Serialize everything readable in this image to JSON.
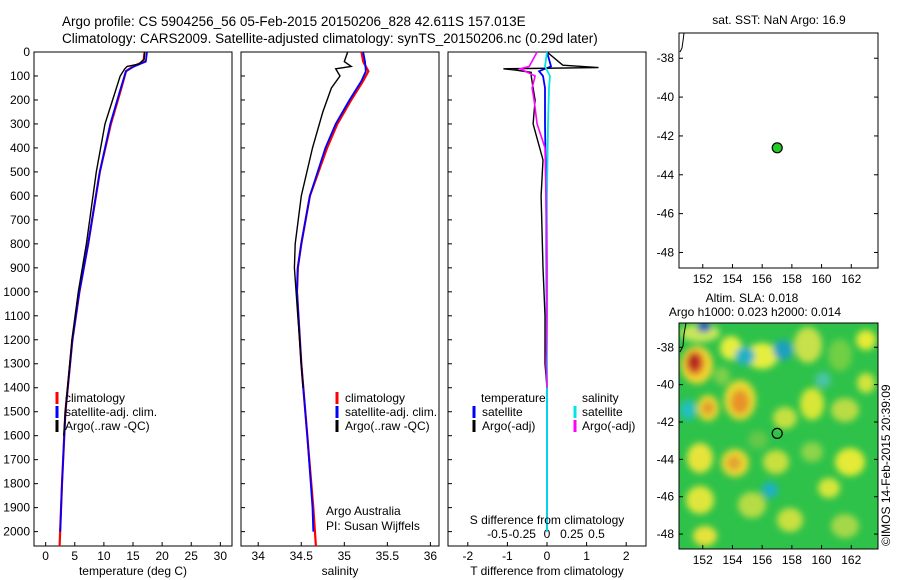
{
  "header": {
    "line1": "Argo profile: CS 5904256_56 05-Feb-2015 20150206_828 42.611S 157.013E",
    "line2": "Climatology: CARS2009. Satellite-adjusted climatology: synTS_20150206.nc (0.29d later)"
  },
  "colors": {
    "climatology": "#ff0000",
    "satellite": "#0000ff",
    "argo": "#000000",
    "salinity_satellite": "#00e5e5",
    "salinity_argo": "#ff00ff",
    "marker_sst": "#22cc22"
  },
  "chart_data": [
    {
      "type": "line",
      "xlabel": "temperature (deg C)",
      "xticks": [
        "0",
        "5",
        "10",
        "15",
        "20",
        "25",
        "30"
      ],
      "xlim": [
        -2,
        32
      ],
      "yticks": [
        "0",
        "100",
        "200",
        "300",
        "400",
        "500",
        "600",
        "700",
        "800",
        "900",
        "1000",
        "1100",
        "1200",
        "1300",
        "1400",
        "1500",
        "1600",
        "1700",
        "1800",
        "1900",
        "2000"
      ],
      "ylim": [
        2060,
        0
      ],
      "legend": [
        "climatology",
        "satellite-adj. clim.",
        "Argo(..raw -QC)"
      ],
      "series": [
        {
          "name": "climatology",
          "depth": [
            0,
            40,
            60,
            80,
            150,
            300,
            500,
            800,
            1000,
            1200,
            1500,
            1800,
            2060
          ],
          "values": [
            17,
            16.8,
            15,
            13.8,
            13,
            11.2,
            9.3,
            7.3,
            5.8,
            4.6,
            3.4,
            2.8,
            2.4
          ]
        },
        {
          "name": "satellite-adj. clim.",
          "depth": [
            0,
            40,
            60,
            80,
            150,
            300,
            500,
            800,
            1000,
            1200,
            1500,
            1800,
            2000
          ],
          "values": [
            17.4,
            17.2,
            15.2,
            13.8,
            12.9,
            11.1,
            9.3,
            7.3,
            5.8,
            4.6,
            3.4,
            2.8,
            2.5
          ]
        },
        {
          "name": "Argo(..raw -QC)",
          "depth": [
            0,
            30,
            50,
            60,
            70,
            100,
            200,
            300,
            500,
            800,
            1000,
            1200,
            1500,
            1600
          ],
          "values": [
            17,
            16.9,
            16,
            14,
            13.6,
            12.8,
            11.5,
            10.2,
            8.7,
            7,
            5.6,
            4.5,
            3.4,
            3.1
          ]
        }
      ]
    },
    {
      "type": "line",
      "xlabel": "salinity",
      "xticks": [
        "34",
        "34.5",
        "35",
        "35.5",
        "36"
      ],
      "xlim": [
        33.8,
        36.1
      ],
      "ylim": [
        2060,
        0
      ],
      "legend": [
        "climatology",
        "satellite-adj. clim.",
        "Argo(..raw -QC)"
      ],
      "annotation": [
        "Argo Australia",
        "PI: Susan Wijffels"
      ],
      "series": [
        {
          "name": "climatology",
          "depth": [
            0,
            40,
            80,
            120,
            200,
            300,
            400,
            600,
            800,
            900,
            1000,
            1300,
            1600,
            1900,
            2060
          ],
          "values": [
            35.2,
            35.22,
            35.28,
            35.22,
            35.08,
            34.92,
            34.8,
            34.6,
            34.5,
            34.46,
            34.45,
            34.5,
            34.57,
            34.64,
            34.67
          ]
        },
        {
          "name": "satellite-adj. clim.",
          "depth": [
            0,
            40,
            80,
            120,
            200,
            300,
            400,
            600,
            800,
            900,
            1000,
            1300,
            1600,
            1900,
            2000
          ],
          "values": [
            35.22,
            35.24,
            35.25,
            35.2,
            35.06,
            34.9,
            34.78,
            34.6,
            34.5,
            34.46,
            34.45,
            34.5,
            34.57,
            34.63,
            34.64
          ]
        },
        {
          "name": "Argo(..raw -QC)",
          "depth": [
            0,
            40,
            60,
            70,
            100,
            150,
            250,
            400,
            600,
            800,
            900,
            1000,
            1100,
            1300,
            1400
          ],
          "values": [
            35.04,
            35.0,
            35.08,
            34.9,
            34.95,
            34.85,
            34.75,
            34.63,
            34.5,
            34.43,
            34.42,
            34.44,
            34.46,
            34.5,
            34.52
          ]
        }
      ]
    },
    {
      "type": "line",
      "xlabel": "T difference from climatology",
      "xlabel2": "S difference from climatology",
      "xticks": [
        "-2",
        "-1",
        "0",
        "1",
        "2"
      ],
      "sticks": [
        "-0.5",
        "-0.25",
        "0",
        "0.25",
        "0.5"
      ],
      "xlim": [
        -2.5,
        2.5
      ],
      "ylim": [
        2060,
        0
      ],
      "legend_titles": [
        "temperature",
        "salinity"
      ],
      "legend_temperature": [
        "satellite",
        "Argo(-adj)"
      ],
      "legend_salinity": [
        "satellite",
        "Argo(-adj)"
      ],
      "series": [
        {
          "name": "temperature satellite",
          "depth": [
            0,
            60,
            80,
            100,
            150,
            300,
            600,
            1000,
            1500,
            2000
          ],
          "values": [
            0,
            0.1,
            -0.2,
            -0.1,
            -0.05,
            -0.05,
            -0.02,
            -0.01,
            0,
            0
          ]
        },
        {
          "name": "temperature Argo(-adj)",
          "depth": [
            0,
            55,
            65,
            70,
            75,
            85,
            100,
            150,
            200,
            300,
            450,
            600,
            900,
            1100,
            1300,
            1400
          ],
          "values": [
            0,
            0.4,
            1.3,
            -1.1,
            -0.8,
            -0.4,
            -0.4,
            -0.35,
            -0.3,
            -0.35,
            -0.1,
            -0.15,
            -0.1,
            -0.05,
            -0.05,
            0
          ]
        },
        {
          "name": "salinity satellite",
          "depth": [
            0,
            60,
            100,
            150,
            300,
            600,
            1000,
            1500,
            2000
          ],
          "values": [
            0,
            -0.02,
            0.03,
            0.02,
            0.01,
            0.0,
            0.0,
            0.0,
            0.0
          ]
        },
        {
          "name": "salinity Argo(-adj)",
          "depth": [
            0,
            60,
            70,
            100,
            150,
            200,
            300,
            400,
            600,
            900,
            1100,
            1300,
            1400
          ],
          "values": [
            -0.1,
            -0.18,
            -0.27,
            -0.12,
            -0.15,
            -0.13,
            -0.1,
            -0.02,
            -0.01,
            0,
            0,
            -0.01,
            0
          ]
        }
      ]
    },
    {
      "type": "scatter",
      "title": "sat. SST: NaN Argo: 16.9",
      "xticks": [
        "152",
        "154",
        "156",
        "158",
        "160",
        "162"
      ],
      "yticks": [
        "-38",
        "-40",
        "-42",
        "-44",
        "-46",
        "-48"
      ],
      "xlim": [
        150.4,
        163.8
      ],
      "ylim": [
        -48.8,
        -36.7
      ],
      "points": [
        {
          "lon": 157.013,
          "lat": -42.611
        }
      ]
    },
    {
      "type": "heatmap",
      "title_line1": "Altim. SLA: 0.018",
      "title_line2": "Argo h1000: 0.023 h2000: 0.014",
      "xticks": [
        "152",
        "154",
        "156",
        "158",
        "160",
        "162"
      ],
      "yticks": [
        "-38",
        "-40",
        "-42",
        "-44",
        "-46",
        "-48"
      ],
      "xlim": [
        150.4,
        163.8
      ],
      "ylim": [
        -48.8,
        -36.7
      ],
      "points": [
        {
          "lon": 157.013,
          "lat": -42.611
        }
      ]
    }
  ],
  "footer": {
    "stamp": "©IMOS 14-Feb-2015 20:39:09"
  }
}
